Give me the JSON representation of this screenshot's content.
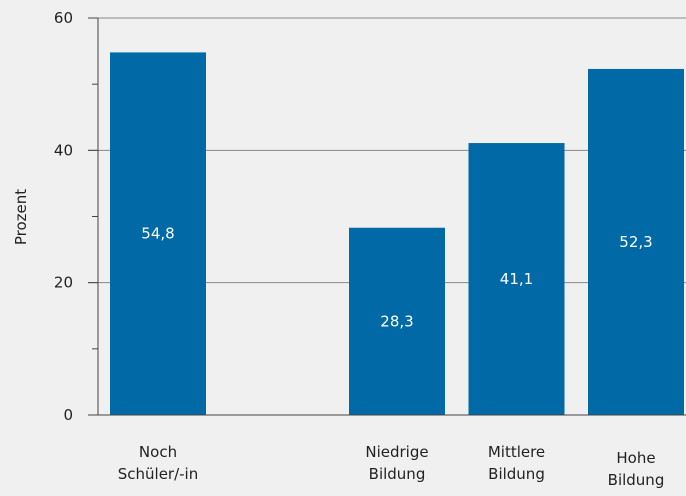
{
  "chart_data": {
    "type": "bar",
    "categories": [
      [
        "Noch",
        "Schüler/-in"
      ],
      "",
      [
        "Niedrige",
        "Bildung"
      ],
      [
        "Mittlere",
        "Bildung"
      ],
      [
        "Hohe",
        "Bildung"
      ]
    ],
    "values": [
      54.8,
      null,
      28.3,
      41.1,
      52.3
    ],
    "data_labels": [
      "54,8",
      "",
      "28,3",
      "41,1",
      "52,3"
    ],
    "ylabel": "Prozent",
    "ylim": [
      0,
      60
    ],
    "yticks": [
      0,
      20,
      40,
      60
    ],
    "grid": true,
    "colors": {
      "bar": "#0069a6",
      "background": "#f0f0f0",
      "grid": "#888888",
      "axis": "#444444",
      "text": "#222222",
      "data_label": "#ffffff"
    }
  }
}
